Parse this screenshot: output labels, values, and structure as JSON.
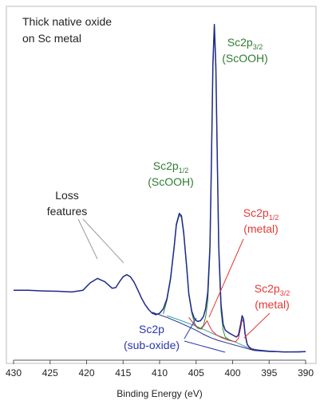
{
  "chart_data": {
    "type": "line",
    "title": "Thick native oxide\non Sc metal",
    "xlabel": "Binding Energy (eV)",
    "ylabel": "",
    "x_reversed": true,
    "xlim": [
      430,
      390
    ],
    "x_ticks": [
      430,
      425,
      420,
      415,
      410,
      405,
      400,
      395,
      390
    ],
    "tick_labels": [
      "430",
      "425",
      "420",
      "415",
      "410",
      "405",
      "400",
      "395",
      "390"
    ],
    "ylim": [
      0,
      1
    ],
    "grid": false,
    "legend": "none",
    "series": [
      {
        "role": "measured",
        "color": "#1f2a8c",
        "x": [
          430,
          428,
          426,
          424,
          422,
          420.5,
          419.5,
          418.5,
          417.5,
          416.5,
          416,
          415.5,
          415,
          414.5,
          414,
          413.5,
          413,
          412.5,
          412,
          411.5,
          411,
          410.5,
          410,
          409.5,
          409,
          408.5,
          408,
          407.7,
          407.3,
          407,
          406.7,
          406.3,
          406,
          405.6,
          405.2,
          404.8,
          404.4,
          404,
          403.7,
          403.4,
          403.1,
          402.9,
          402.7,
          402.5,
          402.3,
          402.1,
          401.9,
          401.6,
          401.3,
          401,
          400.5,
          400,
          399.5,
          399.2,
          398.9,
          398.7,
          398.5,
          398.3,
          398,
          397.5,
          397,
          396,
          395,
          393,
          391,
          390
        ],
        "y": [
          0.19,
          0.19,
          0.188,
          0.187,
          0.185,
          0.19,
          0.212,
          0.225,
          0.215,
          0.196,
          0.198,
          0.215,
          0.23,
          0.236,
          0.23,
          0.214,
          0.192,
          0.168,
          0.148,
          0.133,
          0.122,
          0.118,
          0.122,
          0.135,
          0.165,
          0.225,
          0.32,
          0.385,
          0.417,
          0.41,
          0.36,
          0.26,
          0.18,
          0.128,
          0.105,
          0.098,
          0.1,
          0.112,
          0.135,
          0.185,
          0.32,
          0.58,
          0.86,
          0.975,
          0.85,
          0.58,
          0.32,
          0.15,
          0.09,
          0.072,
          0.064,
          0.058,
          0.052,
          0.058,
          0.09,
          0.115,
          0.105,
          0.062,
          0.03,
          0.016,
          0.014,
          0.012,
          0.01,
          0.008,
          0.008,
          0.009
        ]
      },
      {
        "role": "fit ScOOH",
        "color": "#2e8b3a",
        "x": [
          409.5,
          409,
          408.5,
          408,
          407.7,
          407.3,
          407,
          406.7,
          406.3,
          406,
          405.6,
          405.2,
          404.8,
          404.4,
          404,
          403.7,
          403.4,
          403.1,
          402.9,
          402.7,
          402.5,
          402.3,
          402.1,
          401.9,
          401.6,
          401.3,
          401,
          400.5,
          400
        ],
        "y": [
          0.12,
          0.16,
          0.22,
          0.315,
          0.38,
          0.412,
          0.405,
          0.355,
          0.255,
          0.176,
          0.122,
          0.092,
          0.078,
          0.076,
          0.086,
          0.11,
          0.16,
          0.3,
          0.56,
          0.84,
          0.962,
          0.835,
          0.56,
          0.3,
          0.13,
          0.072,
          0.052,
          0.044,
          0.04
        ]
      },
      {
        "role": "fit metal",
        "color": "#e03030",
        "x": [
          406,
          405,
          404.3,
          403.8,
          403.5,
          403.2,
          402.8,
          402.2,
          401.5,
          400.5,
          399.6,
          399.2,
          398.9,
          398.7,
          398.5,
          398.3,
          398.1,
          397.8,
          397.4,
          397
        ],
        "y": [
          0.11,
          0.082,
          0.075,
          0.09,
          0.1,
          0.086,
          0.07,
          0.058,
          0.05,
          0.042,
          0.038,
          0.048,
          0.08,
          0.104,
          0.096,
          0.058,
          0.036,
          0.024,
          0.018,
          0.015
        ]
      },
      {
        "role": "fit sub-oxide",
        "color": "#3aa0a0",
        "x": [
          409,
          407,
          405,
          403.5,
          402.5,
          401.5,
          400.5,
          399.5,
          398.5,
          397.5,
          396
        ],
        "y": [
          0.115,
          0.1,
          0.084,
          0.07,
          0.06,
          0.052,
          0.044,
          0.036,
          0.026,
          0.018,
          0.012
        ]
      },
      {
        "role": "fit background",
        "color": "#1f2a8c",
        "x": [
          411,
          409,
          407,
          405,
          404,
          403,
          402,
          401,
          400,
          399,
          398,
          397,
          395,
          393,
          390
        ],
        "y": [
          0.125,
          0.11,
          0.092,
          0.072,
          0.06,
          0.05,
          0.042,
          0.036,
          0.03,
          0.024,
          0.018,
          0.012,
          0.009,
          0.008,
          0.009
        ]
      }
    ],
    "annotations": [
      {
        "id": "loss",
        "lines": [
          "Loss",
          "features"
        ],
        "color": "#222222"
      },
      {
        "id": "p12_ox",
        "base": "Sc2p",
        "sub": "1/2",
        "line2": "(ScOOH)",
        "color": "#2e7d32"
      },
      {
        "id": "p32_ox",
        "base": "Sc2p",
        "sub": "3/2",
        "line2": "(ScOOH)",
        "color": "#2e7d32"
      },
      {
        "id": "p12_met",
        "base": "Sc2p",
        "sub": "1/2",
        "line2": "(metal)",
        "color": "#e53935"
      },
      {
        "id": "p32_met",
        "base": "Sc2p",
        "sub": "3/2",
        "line2": "(metal)",
        "color": "#e53935"
      },
      {
        "id": "subox",
        "base": "Sc2p",
        "sub": "",
        "line2": "(sub-oxide)",
        "color": "#2a36b1"
      }
    ]
  }
}
